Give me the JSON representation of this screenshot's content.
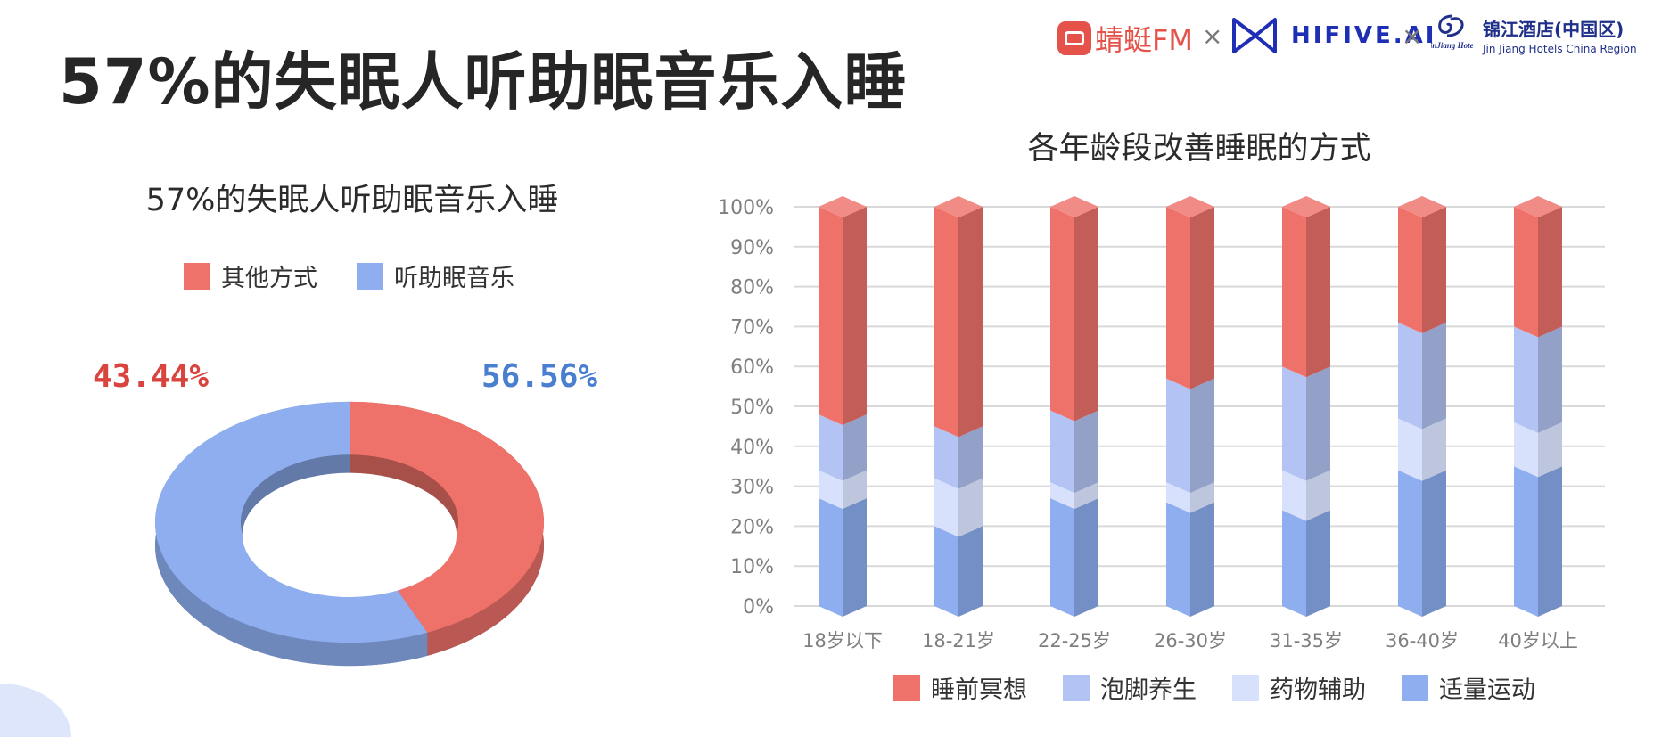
{
  "page": {
    "title": "57%的失眠人听助眠音乐入睡"
  },
  "partners": {
    "fm_name": "蜻蜓FM",
    "times": "×",
    "hifive_name": "HIFIVE.AI",
    "jinjiang_cn": "锦江酒店(中国区)",
    "jinjiang_en": "Jin Jiang Hotels China Region",
    "jinjiang_mark": "JinJiang Hotels",
    "brand_red": "#e5524a",
    "brand_blue": "#1f2fb5"
  },
  "chart_data": [
    {
      "type": "pie",
      "style": "3d-donut",
      "title": "57%的失眠人听助眠音乐入睡",
      "legend_position": "top",
      "slices": [
        {
          "name": "其他方式",
          "value": 43.44,
          "label": "43.44%",
          "color": "#ee726a"
        },
        {
          "name": "听助眠音乐",
          "value": 56.56,
          "label": "56.56%",
          "color": "#8eaef0"
        }
      ]
    },
    {
      "type": "bar",
      "style": "3d-stacked-100",
      "title": "各年龄段改善睡眠的方式",
      "categories": [
        "18岁以下",
        "18-21岁",
        "22-25岁",
        "26-30岁",
        "31-35岁",
        "36-40岁",
        "40岁以上"
      ],
      "ylim": [
        0,
        100
      ],
      "yticks": [
        "0%",
        "10%",
        "20%",
        "30%",
        "40%",
        "50%",
        "60%",
        "70%",
        "80%",
        "90%",
        "100%"
      ],
      "grid": true,
      "legend_position": "bottom",
      "series": [
        {
          "name": "适量运动",
          "color": "#8eaef0",
          "values": [
            27,
            20,
            27,
            26,
            24,
            34,
            35
          ]
        },
        {
          "name": "药物辅助",
          "color": "#d8e1fb",
          "values": [
            7,
            12,
            4,
            5,
            10,
            13,
            11
          ]
        },
        {
          "name": "泡脚养生",
          "color": "#b3c3f3",
          "values": [
            14,
            13,
            18,
            26,
            26,
            24,
            24
          ]
        },
        {
          "name": "睡前冥想",
          "color": "#ee726a",
          "values": [
            52,
            55,
            51,
            43,
            40,
            29,
            30
          ]
        }
      ],
      "legend_order": [
        "睡前冥想",
        "泡脚养生",
        "药物辅助",
        "适量运动"
      ]
    }
  ]
}
